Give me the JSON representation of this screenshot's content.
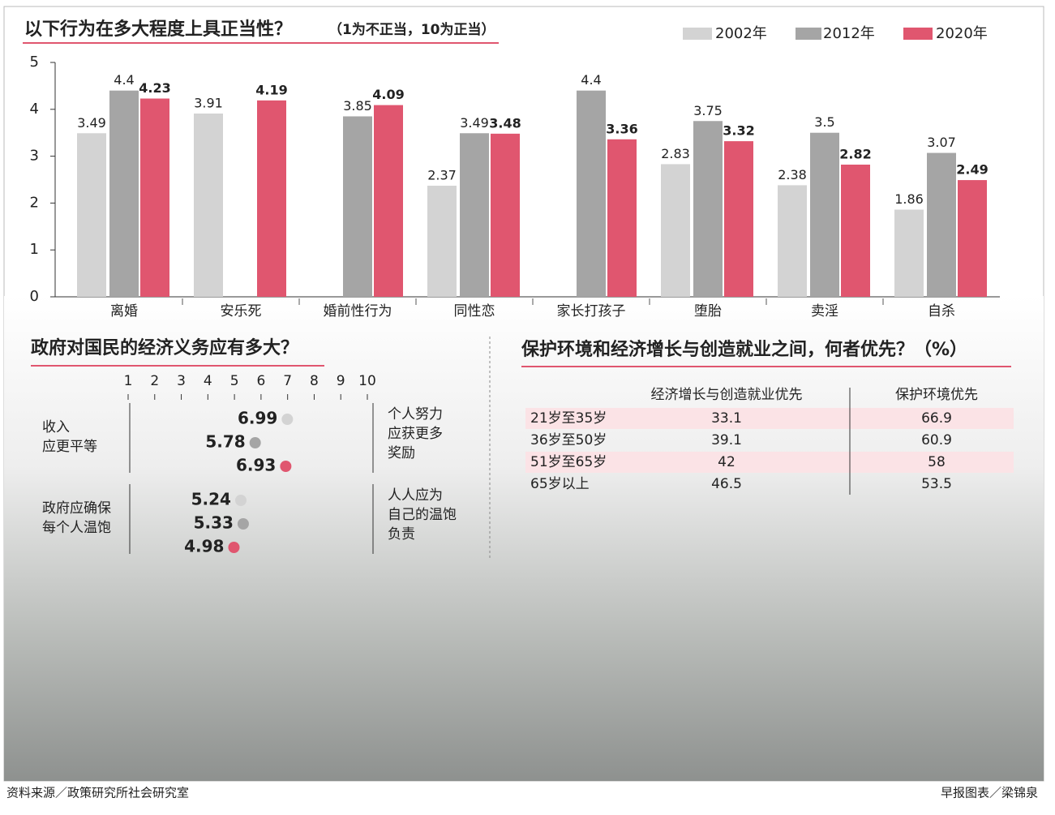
{
  "chart_data": [
    {
      "type": "bar",
      "title": "以下行为在多大程度上具正当性？",
      "subtitle": "（1为不正当，10为正当）",
      "categories": [
        "离婚",
        "安乐死",
        "婚前性行为",
        "同性恋",
        "家长打孩子",
        "堕胎",
        "卖淫",
        "自杀"
      ],
      "series": [
        {
          "name": "2002年",
          "color": "#d3d3d3",
          "label_color": "#333333",
          "values": [
            3.49,
            3.91,
            null,
            2.37,
            null,
            2.83,
            2.38,
            1.86
          ]
        },
        {
          "name": "2012年",
          "color": "#a5a5a5",
          "label_color": "#333333",
          "values": [
            4.4,
            null,
            3.85,
            3.49,
            4.4,
            3.75,
            3.5,
            3.07
          ]
        },
        {
          "name": "2020年",
          "color": "#e0566f",
          "label_color": "#e0566f",
          "values": [
            4.23,
            4.19,
            4.09,
            3.48,
            3.36,
            3.32,
            2.82,
            2.49
          ]
        }
      ],
      "ylim": [
        0,
        5
      ],
      "yticks": [
        0,
        1,
        2,
        3,
        4,
        5
      ]
    },
    {
      "type": "dot",
      "title": "政府对国民的经济义务应有多大？",
      "categories": [
        [
          "收入",
          "应更平等"
        ],
        [
          "政府应确保",
          "每个人温饱"
        ]
      ],
      "right_labels": [
        [
          "个人努力",
          "应获更多",
          "奖励"
        ],
        [
          "人人应为",
          "自己的温饱",
          "负责"
        ]
      ],
      "series": [
        {
          "color": "#d3d3d3",
          "values": [
            6.99,
            5.24
          ]
        },
        {
          "color": "#a5a5a5",
          "values": [
            5.78,
            5.33
          ]
        },
        {
          "color": "#e0566f",
          "values": [
            6.93,
            4.98
          ]
        }
      ],
      "xlim": [
        1,
        10
      ],
      "xticks": [
        1,
        2,
        3,
        4,
        5,
        6,
        7,
        8,
        9,
        10
      ]
    }
  ],
  "table": {
    "title": "保护环境和经济增长与创造就业之间，何者优先？（%）",
    "columns": [
      "经济增长与创造就业优先",
      "保护环境优先"
    ],
    "rows": [
      [
        "21岁至35岁",
        33.1,
        66.9
      ],
      [
        "36岁至50岁",
        39.1,
        60.9
      ],
      [
        "51岁至65岁",
        42,
        58
      ],
      [
        "65岁以上",
        46.5,
        53.5
      ]
    ]
  },
  "footer": {
    "source": "资料来源／政策研究所社会研究室",
    "credit": "早报图表／梁锦泉"
  }
}
